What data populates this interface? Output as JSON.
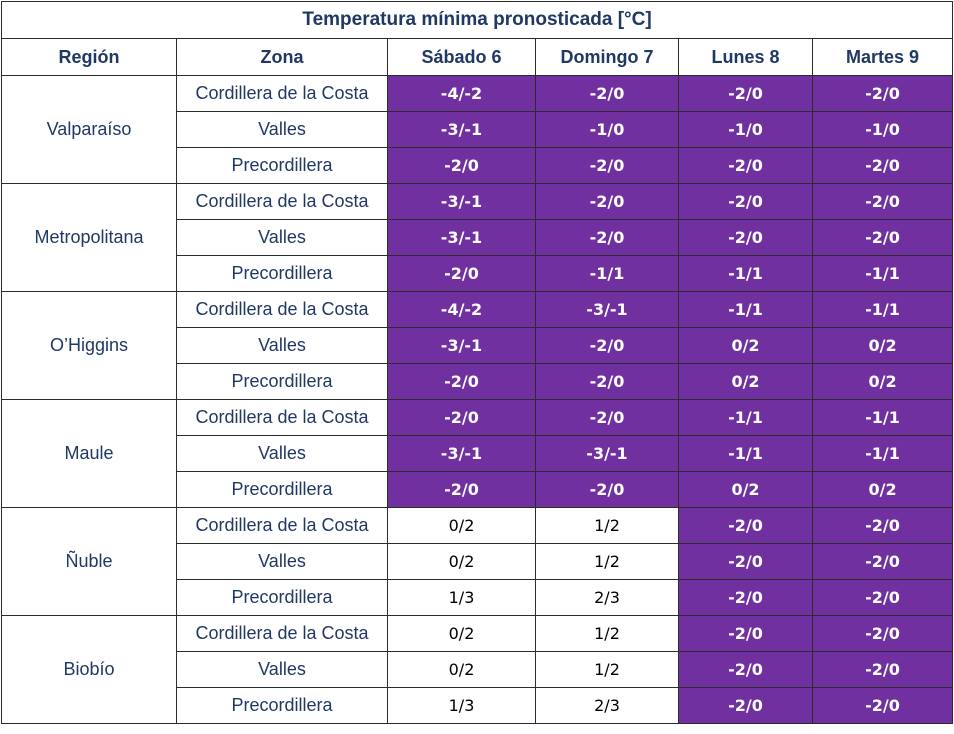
{
  "title": "Temperatura mínima pronosticada [°C]",
  "headers": {
    "region": "Región",
    "zona": "Zona",
    "days": [
      "Sábado 6",
      "Domingo 7",
      "Lunes 8",
      "Martes 9"
    ]
  },
  "colors": {
    "alert": "#7030a0",
    "header_text": "#1f3864",
    "border": "#2b2b2b"
  },
  "regions": [
    {
      "name": "Valparaíso",
      "zones": [
        {
          "zona": "Cordillera de la Costa",
          "values": [
            "-4/-2",
            "-2/0",
            "-2/0",
            "-2/0"
          ],
          "alert": [
            true,
            true,
            true,
            true
          ]
        },
        {
          "zona": "Valles",
          "values": [
            "-3/-1",
            "-1/0",
            "-1/0",
            "-1/0"
          ],
          "alert": [
            true,
            true,
            true,
            true
          ]
        },
        {
          "zona": "Precordillera",
          "values": [
            "-2/0",
            "-2/0",
            "-2/0",
            "-2/0"
          ],
          "alert": [
            true,
            true,
            true,
            true
          ]
        }
      ]
    },
    {
      "name": "Metropolitana",
      "zones": [
        {
          "zona": "Cordillera de la Costa",
          "values": [
            "-3/-1",
            "-2/0",
            "-2/0",
            "-2/0"
          ],
          "alert": [
            true,
            true,
            true,
            true
          ]
        },
        {
          "zona": "Valles",
          "values": [
            "-3/-1",
            "-2/0",
            "-2/0",
            "-2/0"
          ],
          "alert": [
            true,
            true,
            true,
            true
          ]
        },
        {
          "zona": "Precordillera",
          "values": [
            "-2/0",
            "-1/1",
            "-1/1",
            "-1/1"
          ],
          "alert": [
            true,
            true,
            true,
            true
          ]
        }
      ]
    },
    {
      "name": "O’Higgins",
      "zones": [
        {
          "zona": "Cordillera de la Costa",
          "values": [
            "-4/-2",
            "-3/-1",
            "-1/1",
            "-1/1"
          ],
          "alert": [
            true,
            true,
            true,
            true
          ]
        },
        {
          "zona": "Valles",
          "values": [
            "-3/-1",
            "-2/0",
            "0/2",
            "0/2"
          ],
          "alert": [
            true,
            true,
            true,
            true
          ]
        },
        {
          "zona": "Precordillera",
          "values": [
            "-2/0",
            "-2/0",
            "0/2",
            "0/2"
          ],
          "alert": [
            true,
            true,
            true,
            true
          ]
        }
      ]
    },
    {
      "name": "Maule",
      "zones": [
        {
          "zona": "Cordillera de la Costa",
          "values": [
            "-2/0",
            "-2/0",
            "-1/1",
            "-1/1"
          ],
          "alert": [
            true,
            true,
            true,
            true
          ]
        },
        {
          "zona": "Valles",
          "values": [
            "-3/-1",
            "-3/-1",
            "-1/1",
            "-1/1"
          ],
          "alert": [
            true,
            true,
            true,
            true
          ]
        },
        {
          "zona": "Precordillera",
          "values": [
            "-2/0",
            "-2/0",
            "0/2",
            "0/2"
          ],
          "alert": [
            true,
            true,
            true,
            true
          ]
        }
      ]
    },
    {
      "name": "Ñuble",
      "zones": [
        {
          "zona": "Cordillera de la Costa",
          "values": [
            "0/2",
            "1/2",
            "-2/0",
            "-2/0"
          ],
          "alert": [
            false,
            false,
            true,
            true
          ]
        },
        {
          "zona": "Valles",
          "values": [
            "0/2",
            "1/2",
            "-2/0",
            "-2/0"
          ],
          "alert": [
            false,
            false,
            true,
            true
          ]
        },
        {
          "zona": "Precordillera",
          "values": [
            "1/3",
            "2/3",
            "-2/0",
            "-2/0"
          ],
          "alert": [
            false,
            false,
            true,
            true
          ]
        }
      ]
    },
    {
      "name": "Biobío",
      "zones": [
        {
          "zona": "Cordillera de la Costa",
          "values": [
            "0/2",
            "1/2",
            "-2/0",
            "-2/0"
          ],
          "alert": [
            false,
            false,
            true,
            true
          ]
        },
        {
          "zona": "Valles",
          "values": [
            "0/2",
            "1/2",
            "-2/0",
            "-2/0"
          ],
          "alert": [
            false,
            false,
            true,
            true
          ]
        },
        {
          "zona": "Precordillera",
          "values": [
            "1/3",
            "2/3",
            "-2/0",
            "-2/0"
          ],
          "alert": [
            false,
            false,
            true,
            true
          ]
        }
      ]
    }
  ]
}
